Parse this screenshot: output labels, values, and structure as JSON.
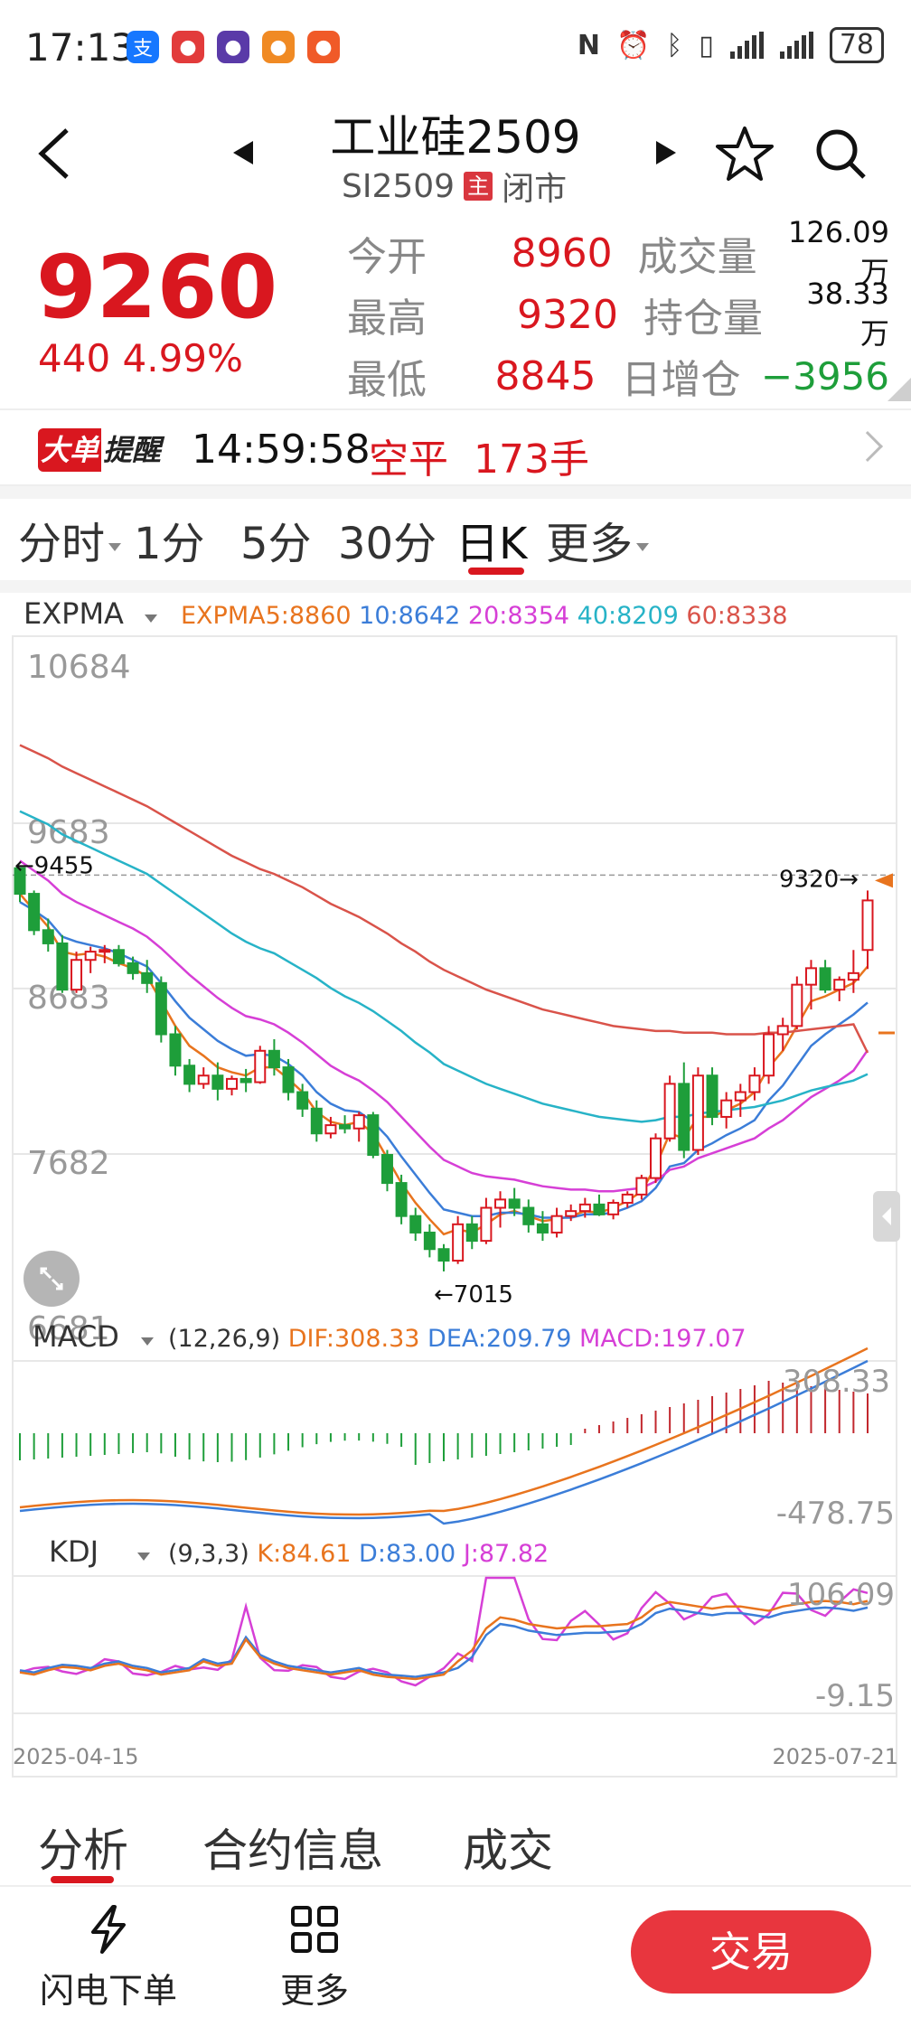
{
  "status_bar": {
    "time": "17:13",
    "battery": "78",
    "app_icons": [
      {
        "name": "alipay-icon",
        "color": "#1677ff",
        "glyph": "支"
      },
      {
        "name": "app-red-icon",
        "color": "#e23b3b",
        "glyph": "●"
      },
      {
        "name": "app-purple-icon",
        "color": "#5a3aa8",
        "glyph": "●"
      },
      {
        "name": "app-orange-icon",
        "color": "#f08a24",
        "glyph": "●"
      },
      {
        "name": "app-orange2-icon",
        "color": "#f05a28",
        "glyph": "●"
      }
    ]
  },
  "header": {
    "title": "工业硅2509",
    "code": "SI2509",
    "main_tag": "主",
    "market_status": "闭市"
  },
  "quote": {
    "price": "9260",
    "change": "440 4.99%",
    "rows": [
      {
        "label": "今开",
        "value": "8960",
        "label2": "成交量",
        "value2": "126.09万",
        "value2_color": "default"
      },
      {
        "label": "最高",
        "value": "9320",
        "label2": "持仓量",
        "value2": "38.33万",
        "value2_color": "default"
      },
      {
        "label": "最低",
        "value": "8845",
        "label2": "日增仓",
        "value2": "−3956",
        "value2_color": "green"
      }
    ],
    "colors": {
      "up": "#d9171f",
      "down": "#1e9e3a"
    }
  },
  "alert": {
    "badge_left": "大单",
    "badge_right": "提醒",
    "time": "14:59:58",
    "action": "空平",
    "quantity": "173手"
  },
  "period_tabs": [
    {
      "label": "分时",
      "dropdown": true
    },
    {
      "label": "1分",
      "dropdown": false
    },
    {
      "label": "5分",
      "dropdown": false
    },
    {
      "label": "30分",
      "dropdown": false
    },
    {
      "label": "日K",
      "dropdown": false,
      "active": true
    },
    {
      "label": "更多",
      "dropdown": true
    }
  ],
  "indicators": {
    "main": {
      "name": "EXPMA",
      "legend": [
        {
          "text": "EXPMA5:8860",
          "color": "#e8741e"
        },
        {
          "text": "10:8642",
          "color": "#3b7dd8"
        },
        {
          "text": "20:8354",
          "color": "#d63fd6"
        },
        {
          "text": "40:8209",
          "color": "#27b3c7"
        },
        {
          "text": "60:8338",
          "color": "#d9534a"
        }
      ]
    },
    "macd": {
      "name": "MACD",
      "legend": [
        {
          "text": "(12,26,9)",
          "color": "#333333"
        },
        {
          "text": "DIF:308.33",
          "color": "#e8741e"
        },
        {
          "text": "DEA:209.79",
          "color": "#3b7dd8"
        },
        {
          "text": "MACD:197.07",
          "color": "#d63fd6"
        }
      ],
      "max_label": "308.33",
      "min_label": "-478.75"
    },
    "kdj": {
      "name": "KDJ",
      "legend": [
        {
          "text": "(9,3,3)",
          "color": "#333333"
        },
        {
          "text": "K:84.61",
          "color": "#e8741e"
        },
        {
          "text": "D:83.00",
          "color": "#3b7dd8"
        },
        {
          "text": "J:87.82",
          "color": "#d63fd6"
        }
      ],
      "max_label": "106.09",
      "min_label": "-9.15"
    }
  },
  "chart_data": {
    "type": "candlestick",
    "y_ticks": [
      "10684",
      "9683",
      "8683",
      "7682",
      "6681"
    ],
    "ylim": [
      6681,
      10684
    ],
    "annotations": {
      "high_label": "9320",
      "low_label": "7015",
      "left_label": "9455"
    },
    "date_start": "2025-04-15",
    "date_end": "2025-07-21",
    "candles": [
      [
        9455,
        9455,
        9250,
        9300
      ],
      [
        9300,
        9320,
        9050,
        9080
      ],
      [
        9080,
        9150,
        8950,
        9000
      ],
      [
        9000,
        9050,
        8700,
        8720
      ],
      [
        8720,
        8950,
        8700,
        8900
      ],
      [
        8900,
        8980,
        8820,
        8950
      ],
      [
        8950,
        8990,
        8880,
        8960
      ],
      [
        8960,
        8990,
        8860,
        8880
      ],
      [
        8880,
        8920,
        8780,
        8820
      ],
      [
        8820,
        8900,
        8700,
        8760
      ],
      [
        8760,
        8800,
        8400,
        8450
      ],
      [
        8450,
        8500,
        8200,
        8260
      ],
      [
        8260,
        8300,
        8100,
        8150
      ],
      [
        8150,
        8250,
        8120,
        8200
      ],
      [
        8200,
        8280,
        8050,
        8120
      ],
      [
        8120,
        8200,
        8080,
        8180
      ],
      [
        8180,
        8240,
        8100,
        8160
      ],
      [
        8160,
        8380,
        8150,
        8350
      ],
      [
        8350,
        8420,
        8200,
        8250
      ],
      [
        8250,
        8300,
        8050,
        8100
      ],
      [
        8100,
        8150,
        7950,
        8000
      ],
      [
        8000,
        8050,
        7800,
        7850
      ],
      [
        7850,
        7950,
        7820,
        7900
      ],
      [
        7900,
        7960,
        7850,
        7880
      ],
      [
        7880,
        7980,
        7800,
        7960
      ],
      [
        7960,
        7980,
        7700,
        7720
      ],
      [
        7720,
        7750,
        7500,
        7550
      ],
      [
        7550,
        7600,
        7300,
        7350
      ],
      [
        7350,
        7400,
        7200,
        7250
      ],
      [
        7250,
        7300,
        7100,
        7150
      ],
      [
        7150,
        7180,
        7015,
        7080
      ],
      [
        7080,
        7350,
        7060,
        7300
      ],
      [
        7300,
        7350,
        7150,
        7200
      ],
      [
        7200,
        7460,
        7180,
        7400
      ],
      [
        7400,
        7500,
        7280,
        7450
      ],
      [
        7450,
        7520,
        7350,
        7400
      ],
      [
        7400,
        7450,
        7250,
        7300
      ],
      [
        7300,
        7380,
        7200,
        7250
      ],
      [
        7250,
        7400,
        7220,
        7350
      ],
      [
        7350,
        7420,
        7320,
        7380
      ],
      [
        7380,
        7460,
        7340,
        7420
      ],
      [
        7420,
        7480,
        7350,
        7360
      ],
      [
        7360,
        7450,
        7330,
        7430
      ],
      [
        7430,
        7500,
        7400,
        7480
      ],
      [
        7480,
        7600,
        7450,
        7580
      ],
      [
        7580,
        7850,
        7550,
        7820
      ],
      [
        7820,
        8200,
        7800,
        8150
      ],
      [
        8150,
        8280,
        7700,
        7750
      ],
      [
        7750,
        8250,
        7720,
        8200
      ],
      [
        8200,
        8250,
        7900,
        7950
      ],
      [
        7950,
        8100,
        7880,
        8050
      ],
      [
        8050,
        8150,
        7950,
        8100
      ],
      [
        8100,
        8250,
        8050,
        8200
      ],
      [
        8200,
        8500,
        8150,
        8450
      ],
      [
        8450,
        8550,
        8350,
        8500
      ],
      [
        8500,
        8800,
        8480,
        8750
      ],
      [
        8750,
        8900,
        8600,
        8850
      ],
      [
        8850,
        8900,
        8700,
        8720
      ],
      [
        8720,
        8800,
        8650,
        8780
      ],
      [
        8780,
        8960,
        8700,
        8820
      ],
      [
        8960,
        9320,
        8845,
        9260
      ]
    ],
    "expma": {
      "5": [
        9300,
        9200,
        9100,
        8950,
        8930,
        8940,
        8920,
        8880,
        8850,
        8800,
        8650,
        8500,
        8380,
        8320,
        8250,
        8220,
        8200,
        8250,
        8250,
        8180,
        8100,
        7980,
        7920,
        7900,
        7920,
        7850,
        7700,
        7550,
        7430,
        7330,
        7240,
        7270,
        7250,
        7300,
        7360,
        7380,
        7350,
        7320,
        7330,
        7350,
        7380,
        7370,
        7400,
        7440,
        7500,
        7650,
        7850,
        7820,
        7950,
        7950,
        7990,
        8030,
        8100,
        8250,
        8350,
        8500,
        8650,
        8680,
        8720,
        8760,
        8860
      ],
      "10": [
        9250,
        9200,
        9140,
        9040,
        9010,
        8990,
        8970,
        8940,
        8900,
        8860,
        8760,
        8650,
        8550,
        8480,
        8410,
        8360,
        8320,
        8330,
        8320,
        8270,
        8200,
        8100,
        8030,
        7990,
        7980,
        7920,
        7830,
        7710,
        7600,
        7490,
        7390,
        7370,
        7350,
        7350,
        7370,
        7370,
        7360,
        7340,
        7340,
        7340,
        7360,
        7360,
        7370,
        7400,
        7440,
        7520,
        7650,
        7670,
        7750,
        7790,
        7840,
        7880,
        7930,
        8050,
        8140,
        8260,
        8380,
        8450,
        8510,
        8570,
        8642
      ],
      "20": [
        9500,
        9440,
        9380,
        9300,
        9250,
        9210,
        9170,
        9130,
        9090,
        9040,
        8970,
        8890,
        8810,
        8740,
        8670,
        8610,
        8560,
        8540,
        8510,
        8460,
        8400,
        8330,
        8260,
        8210,
        8170,
        8110,
        8040,
        7950,
        7860,
        7770,
        7690,
        7650,
        7610,
        7590,
        7580,
        7570,
        7550,
        7530,
        7520,
        7510,
        7510,
        7500,
        7500,
        7510,
        7520,
        7560,
        7630,
        7650,
        7700,
        7730,
        7760,
        7790,
        7820,
        7880,
        7930,
        8000,
        8070,
        8120,
        8170,
        8230,
        8354
      ],
      "40": [
        9800,
        9760,
        9720,
        9660,
        9620,
        9580,
        9540,
        9500,
        9460,
        9420,
        9360,
        9300,
        9240,
        9180,
        9120,
        9060,
        9010,
        8970,
        8940,
        8890,
        8840,
        8790,
        8730,
        8680,
        8640,
        8590,
        8530,
        8470,
        8400,
        8340,
        8270,
        8230,
        8190,
        8150,
        8120,
        8090,
        8060,
        8030,
        8010,
        7990,
        7970,
        7950,
        7940,
        7930,
        7920,
        7930,
        7950,
        7950,
        7970,
        7980,
        7990,
        8000,
        8010,
        8030,
        8050,
        8080,
        8110,
        8130,
        8150,
        8170,
        8209
      ],
      "60": [
        10200,
        10160,
        10120,
        10070,
        10030,
        9990,
        9950,
        9910,
        9870,
        9830,
        9780,
        9730,
        9680,
        9630,
        9580,
        9530,
        9490,
        9450,
        9420,
        9380,
        9340,
        9290,
        9240,
        9200,
        9160,
        9110,
        9060,
        9000,
        8950,
        8890,
        8840,
        8800,
        8760,
        8720,
        8690,
        8660,
        8630,
        8600,
        8580,
        8560,
        8540,
        8520,
        8500,
        8490,
        8480,
        8470,
        8470,
        8460,
        8460,
        8460,
        8450,
        8450,
        8450,
        8460,
        8460,
        8470,
        8480,
        8490,
        8500,
        8510,
        8338
      ]
    }
  },
  "bottom_tabs": [
    {
      "label": "分析",
      "active": true
    },
    {
      "label": "合约信息",
      "active": false
    },
    {
      "label": "成交",
      "active": false
    }
  ],
  "toolbar": {
    "flash_label": "闪电下单",
    "more_label": "更多",
    "trade_label": "交易"
  }
}
